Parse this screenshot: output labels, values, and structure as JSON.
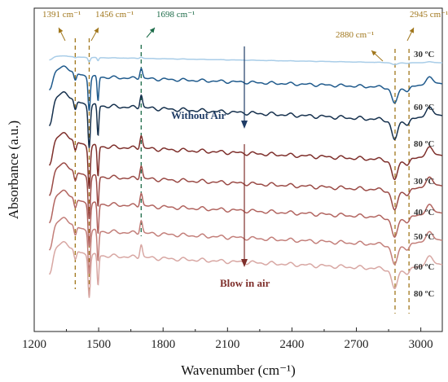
{
  "chart_data": {
    "type": "line",
    "title": "",
    "xlabel": "Wavenumber (cm⁻¹)",
    "ylabel": "Absorbance (a.u.)",
    "xlim": [
      1200,
      3100
    ],
    "x_ticks": [
      "1200",
      "1500",
      "1800",
      "2100",
      "2400",
      "2700",
      "3000"
    ],
    "grid": false,
    "series": [
      {
        "name": "30 ºC",
        "group": "Without Air",
        "color": "#a9cde8",
        "offset": 8.9,
        "baseline": 0.12,
        "amp": 0.1
      },
      {
        "name": "60 ºC",
        "group": "Without Air",
        "color": "#1f5a8c",
        "offset": 7.9,
        "baseline": 0.55,
        "amp": 0.8
      },
      {
        "name": "80 ºC",
        "group": "Without Air",
        "color": "#15304d",
        "offset": 6.7,
        "baseline": 0.85,
        "amp": 1.0
      },
      {
        "name": "30 ºC",
        "group": "Blow in air",
        "color": "#7e2f2b",
        "offset": 5.4,
        "baseline": 0.8,
        "amp": 1.0
      },
      {
        "name": "40 ºC",
        "group": "Blow in air",
        "color": "#9a4a45",
        "offset": 4.4,
        "baseline": 0.8,
        "amp": 1.0
      },
      {
        "name": "50 ºC",
        "group": "Blow in air",
        "color": "#b26560",
        "offset": 3.5,
        "baseline": 0.8,
        "amp": 1.0
      },
      {
        "name": "60 ºC",
        "group": "Blow in air",
        "color": "#c37f7a",
        "offset": 2.6,
        "baseline": 0.8,
        "amp": 1.0
      },
      {
        "name": "80 ºC",
        "group": "Blow in air",
        "color": "#d8a7a3",
        "offset": 1.8,
        "baseline": 0.8,
        "amp": 1.0
      }
    ],
    "peaks": [
      {
        "x": 1391,
        "label": "1391 cm⁻¹",
        "color": "#a0761b"
      },
      {
        "x": 1456,
        "label": "1456 cm⁻¹",
        "color": "#a0761b"
      },
      {
        "x": 1698,
        "label": "1698 cm⁻¹",
        "color": "#1c6b48"
      },
      {
        "x": 2880,
        "label": "2880 cm⁻¹",
        "color": "#a0761b"
      },
      {
        "x": 2945,
        "label": "2945 cm⁻¹",
        "color": "#a0761b"
      }
    ],
    "annotations": {
      "without_air": {
        "text": "Without Air",
        "color": "#1f3c66"
      },
      "blow_in_air": {
        "text": "Blow in air",
        "color": "#7e2f2b"
      }
    }
  }
}
